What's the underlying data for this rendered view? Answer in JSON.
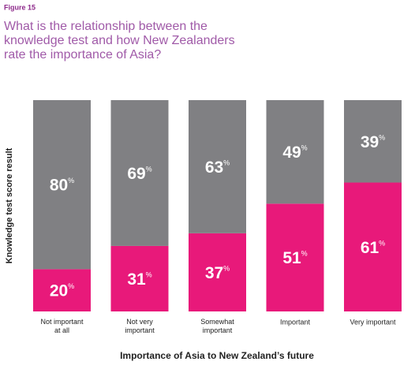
{
  "chart_data": {
    "type": "stacked_bar",
    "figure_label": "Figure 15",
    "title": "What is the relationship between the\nknowledge test and how New Zealanders\nrate the importance of Asia?",
    "xlabel": "Importance of Asia to New Zealand’s future",
    "ylabel": "Knowledge test score result",
    "categories": [
      "Not important\nat all",
      "Not very\nimportant",
      "Somewhat\nimportant",
      "Important",
      "Very important"
    ],
    "ylim": [
      0,
      100
    ],
    "series": [
      {
        "color": "#e8197a",
        "values": [
          20,
          31,
          37,
          51,
          61
        ],
        "value_labels": [
          "20%",
          "31%",
          "37%",
          "51%",
          "61%"
        ]
      },
      {
        "color": "#808083",
        "values": [
          80,
          69,
          63,
          49,
          39
        ],
        "value_labels": [
          "80%",
          "69%",
          "63%",
          "49%",
          "39%"
        ]
      }
    ]
  }
}
